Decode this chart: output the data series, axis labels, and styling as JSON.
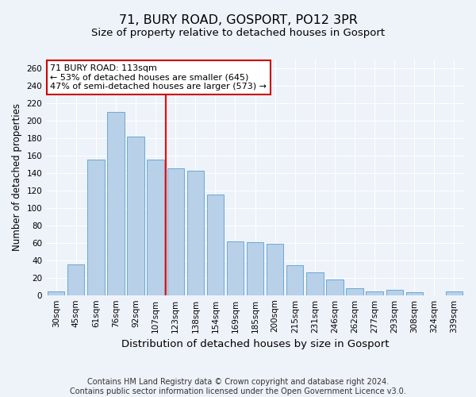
{
  "title": "71, BURY ROAD, GOSPORT, PO12 3PR",
  "subtitle": "Size of property relative to detached houses in Gosport",
  "xlabel": "Distribution of detached houses by size in Gosport",
  "ylabel": "Number of detached properties",
  "categories": [
    "30sqm",
    "45sqm",
    "61sqm",
    "76sqm",
    "92sqm",
    "107sqm",
    "123sqm",
    "138sqm",
    "154sqm",
    "169sqm",
    "185sqm",
    "200sqm",
    "215sqm",
    "231sqm",
    "246sqm",
    "262sqm",
    "277sqm",
    "293sqm",
    "308sqm",
    "324sqm",
    "339sqm"
  ],
  "values": [
    4,
    35,
    155,
    210,
    182,
    155,
    145,
    143,
    115,
    62,
    61,
    59,
    34,
    26,
    18,
    8,
    4,
    6,
    3,
    0,
    4
  ],
  "bar_color": "#b8d0e8",
  "bar_edge_color": "#6aaad4",
  "bar_width": 0.85,
  "red_line_x": 5.5,
  "annotation_line1": "71 BURY ROAD: 113sqm",
  "annotation_line2": "← 53% of detached houses are smaller (645)",
  "annotation_line3": "47% of semi-detached houses are larger (573) →",
  "annotation_box_color": "#ffffff",
  "annotation_box_edge": "#cc0000",
  "ylim": [
    0,
    270
  ],
  "yticks": [
    0,
    20,
    40,
    60,
    80,
    100,
    120,
    140,
    160,
    180,
    200,
    220,
    240,
    260
  ],
  "footer_line1": "Contains HM Land Registry data © Crown copyright and database right 2024.",
  "footer_line2": "Contains public sector information licensed under the Open Government Licence v3.0.",
  "bg_color": "#eef2f9",
  "plot_bg_color": "#eef2f9",
  "grid_color": "#ffffff",
  "title_fontsize": 11.5,
  "subtitle_fontsize": 9.5,
  "tick_fontsize": 7.5,
  "ylabel_fontsize": 8.5,
  "xlabel_fontsize": 9.5,
  "footer_fontsize": 7,
  "annotation_fontsize": 8
}
